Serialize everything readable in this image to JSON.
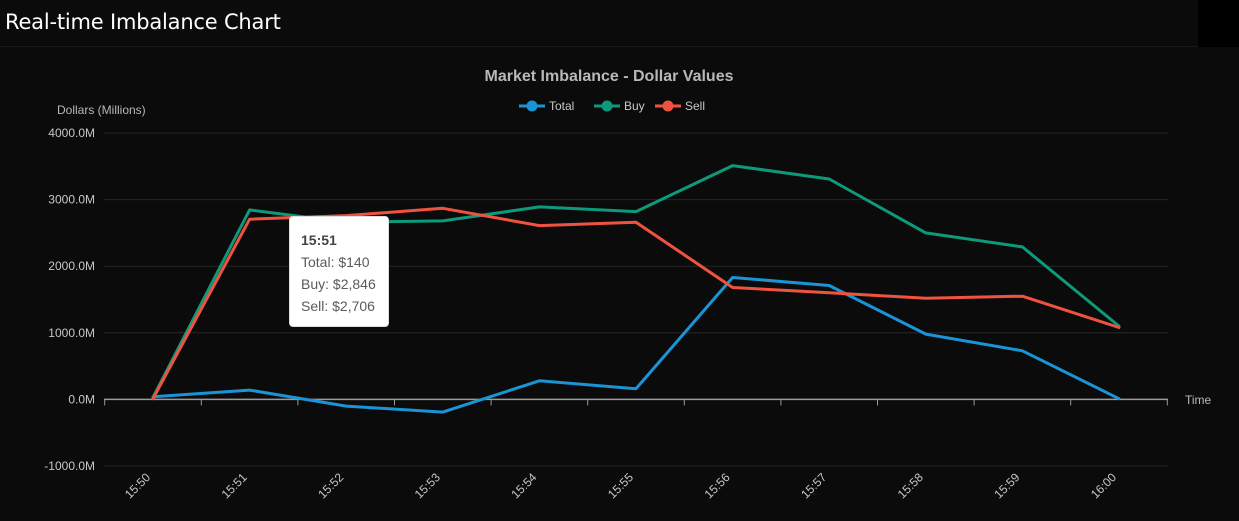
{
  "page": {
    "title": "Real-time Imbalance Chart"
  },
  "chart_data": {
    "type": "line",
    "title": "Market Imbalance - Dollar Values",
    "ylabel": "Dollars (Millions)",
    "xlabel": "Time",
    "ylim": [
      -1000,
      4000
    ],
    "yticks": [
      4000,
      3000,
      2000,
      1000,
      0,
      -1000
    ],
    "ytick_labels": [
      "4000.0M",
      "3000.0M",
      "2000.0M",
      "1000.0M",
      "0.0M",
      "-1000.0M"
    ],
    "categories": [
      "15:50",
      "15:51",
      "15:52",
      "15:53",
      "15:54",
      "15:55",
      "15:56",
      "15:57",
      "15:58",
      "15:59",
      "16:00"
    ],
    "legend_position": "top-center",
    "series": [
      {
        "name": "Total",
        "color": "#1a94d6",
        "values": [
          40,
          140,
          -100,
          -190,
          280,
          160,
          1830,
          1710,
          980,
          730,
          10
        ]
      },
      {
        "name": "Buy",
        "color": "#0e9a7a",
        "values": [
          30,
          2846,
          2660,
          2680,
          2890,
          2820,
          3510,
          3310,
          2500,
          2290,
          1100
        ]
      },
      {
        "name": "Sell",
        "color": "#ef5340",
        "values": [
          10,
          2706,
          2760,
          2870,
          2610,
          2660,
          1680,
          1600,
          1520,
          1550,
          1080
        ]
      }
    ]
  },
  "tooltip": {
    "title": "15:51",
    "lines": [
      "Total: $140",
      "Buy: $2,846",
      "Sell: $2,706"
    ]
  }
}
